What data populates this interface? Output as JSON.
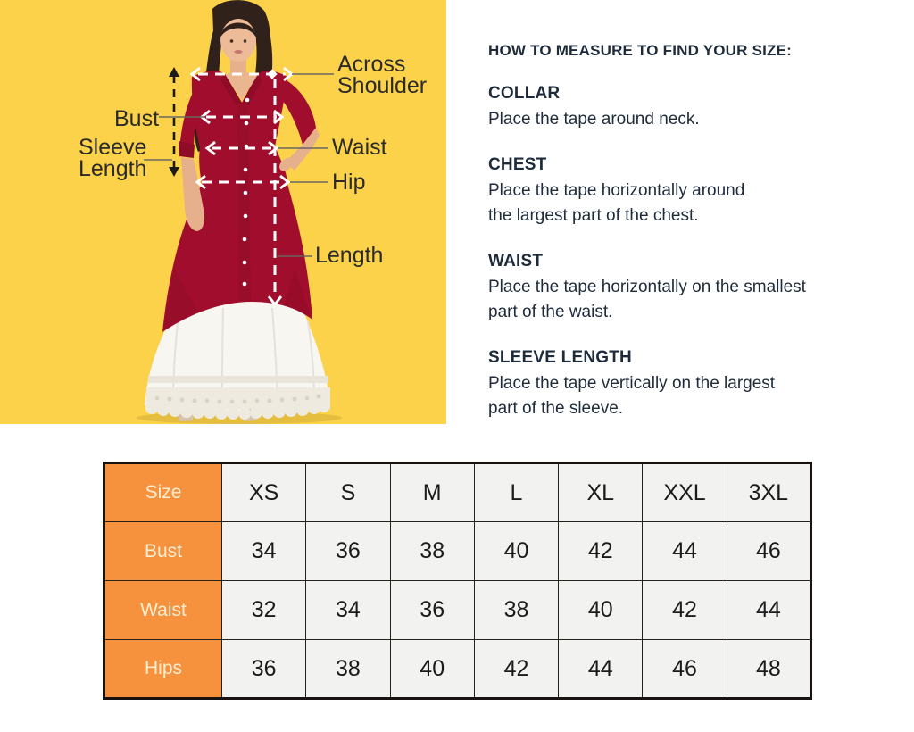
{
  "diagram": {
    "background_color": "#FDD24B",
    "dress_color": "#A10E2D",
    "labels": {
      "across_line1": "Across",
      "across_line2": "Shoulder",
      "bust": "Bust",
      "sleeve_line1": "Sleeve",
      "sleeve_line2": "Length",
      "waist": "Waist",
      "hip": "Hip",
      "length": "Length"
    }
  },
  "instructions": {
    "title": "HOW TO MEASURE TO FIND YOUR SIZE:",
    "text_color": "#1E2B3A",
    "sections": [
      {
        "heading": "COLLAR",
        "lines": [
          "Place the tape around neck."
        ]
      },
      {
        "heading": "CHEST",
        "lines": [
          "Place the tape horizontally around",
          "the largest part of the chest."
        ]
      },
      {
        "heading": "WAIST",
        "lines": [
          "Place the tape horizontally on the smallest",
          "part of the waist."
        ]
      },
      {
        "heading": "SLEEVE LENGTH",
        "lines": [
          "Place the tape vertically on the largest",
          "part of the sleeve."
        ]
      }
    ]
  },
  "size_table": {
    "corner_label": "Size",
    "header_bg": "#F6913D",
    "header_text_color": "#FBEED2",
    "cell_bg": "#F2F2F1",
    "border_color": "#181310",
    "sizes": [
      "XS",
      "S",
      "M",
      "L",
      "XL",
      "XXL",
      "3XL"
    ],
    "rows": [
      {
        "label": "Bust",
        "values": [
          "34",
          "36",
          "38",
          "40",
          "42",
          "44",
          "46"
        ]
      },
      {
        "label": "Waist",
        "values": [
          "32",
          "34",
          "36",
          "38",
          "40",
          "42",
          "44"
        ]
      },
      {
        "label": "Hips",
        "values": [
          "36",
          "38",
          "40",
          "42",
          "44",
          "46",
          "48"
        ]
      }
    ]
  }
}
